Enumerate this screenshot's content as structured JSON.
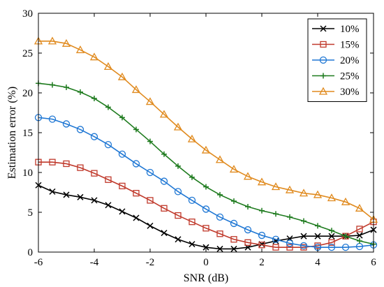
{
  "chart_data": {
    "type": "line",
    "xlabel": "SNR (dB)",
    "ylabel": "Estimation error (%)",
    "xlim": [
      -6,
      6
    ],
    "ylim": [
      0,
      30
    ],
    "xticks": [
      -6,
      -4,
      -2,
      0,
      2,
      4,
      6
    ],
    "yticks": [
      0,
      5,
      10,
      15,
      20,
      25,
      30
    ],
    "grid": false,
    "legend_position": "top-right",
    "x": [
      -6,
      -5.5,
      -5,
      -4.5,
      -4,
      -3.5,
      -3,
      -2.5,
      -2,
      -1.5,
      -1,
      -0.5,
      0,
      0.5,
      1,
      1.5,
      2,
      2.5,
      3,
      3.5,
      4,
      4.5,
      5,
      5.5,
      6
    ],
    "series": [
      {
        "name": "10%",
        "color": "#000000",
        "marker": "x",
        "values": [
          8.4,
          7.6,
          7.2,
          6.9,
          6.5,
          5.9,
          5.1,
          4.3,
          3.3,
          2.4,
          1.6,
          1.0,
          0.6,
          0.4,
          0.4,
          0.6,
          1.0,
          1.4,
          1.7,
          2.0,
          2.0,
          2.0,
          2.0,
          2.1,
          2.8
        ]
      },
      {
        "name": "15%",
        "color": "#c0392b",
        "marker": "square",
        "values": [
          11.3,
          11.3,
          11.1,
          10.6,
          9.9,
          9.1,
          8.3,
          7.4,
          6.5,
          5.5,
          4.6,
          3.8,
          3.0,
          2.3,
          1.6,
          1.2,
          0.9,
          0.6,
          0.6,
          0.6,
          0.8,
          1.2,
          2.0,
          2.9,
          3.8
        ]
      },
      {
        "name": "20%",
        "color": "#1f77d4",
        "marker": "circle",
        "values": [
          16.9,
          16.7,
          16.1,
          15.4,
          14.5,
          13.5,
          12.3,
          11.1,
          10.0,
          8.9,
          7.6,
          6.5,
          5.4,
          4.4,
          3.6,
          2.8,
          2.1,
          1.6,
          1.1,
          0.8,
          0.6,
          0.6,
          0.6,
          0.7,
          0.9
        ]
      },
      {
        "name": "25%",
        "color": "#1e7b1e",
        "marker": "plus",
        "values": [
          21.2,
          21.0,
          20.7,
          20.1,
          19.3,
          18.2,
          16.9,
          15.4,
          13.9,
          12.3,
          10.8,
          9.4,
          8.2,
          7.2,
          6.4,
          5.7,
          5.2,
          4.8,
          4.4,
          3.9,
          3.3,
          2.7,
          2.0,
          1.4,
          1.0
        ]
      },
      {
        "name": "30%",
        "color": "#e08a1e",
        "marker": "triangle",
        "values": [
          26.5,
          26.5,
          26.2,
          25.4,
          24.5,
          23.3,
          22.0,
          20.4,
          18.9,
          17.3,
          15.7,
          14.2,
          12.8,
          11.6,
          10.4,
          9.5,
          8.8,
          8.2,
          7.8,
          7.4,
          7.2,
          6.8,
          6.3,
          5.5,
          4.1
        ]
      }
    ]
  }
}
